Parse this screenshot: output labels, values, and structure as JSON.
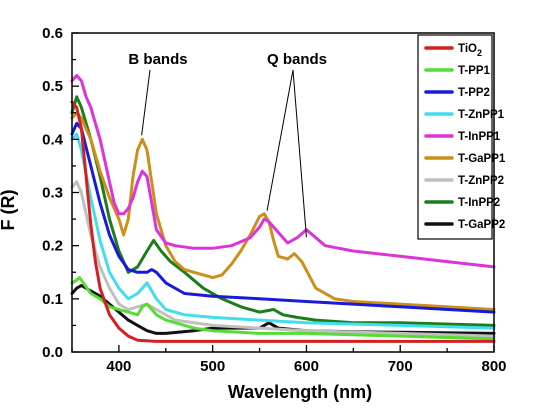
{
  "chart_data": {
    "type": "line",
    "title": "",
    "xlabel": "Wavelength (nm)",
    "ylabel": "F (R)",
    "xlim": [
      350,
      800
    ],
    "ylim": [
      0,
      0.6
    ],
    "xticks": [
      400,
      500,
      600,
      700,
      800
    ],
    "yticks": [
      0.0,
      0.1,
      0.2,
      0.3,
      0.4,
      0.5,
      0.6
    ],
    "grid": false,
    "legend_position": "top-right",
    "annotations": [
      {
        "text": "B bands",
        "target": [
          420,
          0.4
        ]
      },
      {
        "text": "Q bands",
        "targets": [
          [
            558,
            0.26
          ],
          [
            600,
            0.21
          ]
        ]
      }
    ],
    "series": [
      {
        "name": "TiO2",
        "color": "#d42020",
        "points": [
          [
            350,
            0.47
          ],
          [
            355,
            0.46
          ],
          [
            360,
            0.42
          ],
          [
            365,
            0.33
          ],
          [
            370,
            0.24
          ],
          [
            375,
            0.17
          ],
          [
            380,
            0.12
          ],
          [
            390,
            0.07
          ],
          [
            400,
            0.045
          ],
          [
            410,
            0.03
          ],
          [
            420,
            0.022
          ],
          [
            440,
            0.02
          ],
          [
            500,
            0.02
          ],
          [
            600,
            0.02
          ],
          [
            700,
            0.02
          ],
          [
            800,
            0.02
          ]
        ]
      },
      {
        "name": "T-PP1",
        "color": "#55dd33",
        "points": [
          [
            350,
            0.13
          ],
          [
            355,
            0.135
          ],
          [
            358,
            0.14
          ],
          [
            362,
            0.13
          ],
          [
            370,
            0.11
          ],
          [
            380,
            0.1
          ],
          [
            390,
            0.085
          ],
          [
            400,
            0.08
          ],
          [
            410,
            0.075
          ],
          [
            420,
            0.07
          ],
          [
            425,
            0.085
          ],
          [
            430,
            0.09
          ],
          [
            440,
            0.07
          ],
          [
            450,
            0.06
          ],
          [
            480,
            0.045
          ],
          [
            500,
            0.04
          ],
          [
            550,
            0.035
          ],
          [
            600,
            0.035
          ],
          [
            700,
            0.03
          ],
          [
            800,
            0.025
          ]
        ]
      },
      {
        "name": "T-PP2",
        "color": "#1a1adb",
        "points": [
          [
            350,
            0.41
          ],
          [
            355,
            0.43
          ],
          [
            360,
            0.42
          ],
          [
            370,
            0.35
          ],
          [
            380,
            0.28
          ],
          [
            390,
            0.22
          ],
          [
            400,
            0.18
          ],
          [
            410,
            0.155
          ],
          [
            420,
            0.15
          ],
          [
            430,
            0.15
          ],
          [
            435,
            0.155
          ],
          [
            440,
            0.15
          ],
          [
            450,
            0.13
          ],
          [
            470,
            0.11
          ],
          [
            500,
            0.105
          ],
          [
            550,
            0.1
          ],
          [
            600,
            0.095
          ],
          [
            700,
            0.085
          ],
          [
            800,
            0.075
          ]
        ]
      },
      {
        "name": "T-ZnPP1",
        "color": "#44ddee",
        "points": [
          [
            350,
            0.4
          ],
          [
            355,
            0.41
          ],
          [
            360,
            0.38
          ],
          [
            370,
            0.29
          ],
          [
            380,
            0.21
          ],
          [
            390,
            0.15
          ],
          [
            400,
            0.12
          ],
          [
            410,
            0.1
          ],
          [
            420,
            0.11
          ],
          [
            430,
            0.13
          ],
          [
            440,
            0.1
          ],
          [
            450,
            0.08
          ],
          [
            470,
            0.07
          ],
          [
            500,
            0.065
          ],
          [
            550,
            0.06
          ],
          [
            600,
            0.055
          ],
          [
            700,
            0.05
          ],
          [
            800,
            0.045
          ]
        ]
      },
      {
        "name": "T-InPP1",
        "color": "#dd33dd",
        "points": [
          [
            350,
            0.51
          ],
          [
            355,
            0.52
          ],
          [
            360,
            0.51
          ],
          [
            365,
            0.48
          ],
          [
            370,
            0.46
          ],
          [
            375,
            0.43
          ],
          [
            380,
            0.4
          ],
          [
            385,
            0.36
          ],
          [
            390,
            0.32
          ],
          [
            395,
            0.28
          ],
          [
            400,
            0.26
          ],
          [
            405,
            0.26
          ],
          [
            410,
            0.27
          ],
          [
            415,
            0.29
          ],
          [
            420,
            0.32
          ],
          [
            425,
            0.34
          ],
          [
            430,
            0.33
          ],
          [
            435,
            0.28
          ],
          [
            440,
            0.23
          ],
          [
            450,
            0.205
          ],
          [
            460,
            0.2
          ],
          [
            480,
            0.195
          ],
          [
            500,
            0.195
          ],
          [
            520,
            0.2
          ],
          [
            540,
            0.215
          ],
          [
            550,
            0.235
          ],
          [
            555,
            0.25
          ],
          [
            560,
            0.245
          ],
          [
            570,
            0.225
          ],
          [
            580,
            0.205
          ],
          [
            590,
            0.215
          ],
          [
            600,
            0.23
          ],
          [
            610,
            0.215
          ],
          [
            620,
            0.2
          ],
          [
            650,
            0.19
          ],
          [
            700,
            0.18
          ],
          [
            750,
            0.17
          ],
          [
            800,
            0.16
          ]
        ]
      },
      {
        "name": "T-GaPP1",
        "color": "#cc8f1a",
        "points": [
          [
            350,
            0.44
          ],
          [
            355,
            0.45
          ],
          [
            360,
            0.44
          ],
          [
            370,
            0.4
          ],
          [
            380,
            0.34
          ],
          [
            390,
            0.29
          ],
          [
            400,
            0.25
          ],
          [
            405,
            0.22
          ],
          [
            410,
            0.25
          ],
          [
            415,
            0.33
          ],
          [
            420,
            0.38
          ],
          [
            425,
            0.4
          ],
          [
            430,
            0.38
          ],
          [
            435,
            0.32
          ],
          [
            440,
            0.26
          ],
          [
            450,
            0.2
          ],
          [
            460,
            0.17
          ],
          [
            470,
            0.155
          ],
          [
            480,
            0.15
          ],
          [
            490,
            0.145
          ],
          [
            500,
            0.14
          ],
          [
            510,
            0.145
          ],
          [
            520,
            0.165
          ],
          [
            530,
            0.19
          ],
          [
            540,
            0.22
          ],
          [
            550,
            0.255
          ],
          [
            555,
            0.26
          ],
          [
            560,
            0.245
          ],
          [
            565,
            0.21
          ],
          [
            570,
            0.18
          ],
          [
            580,
            0.175
          ],
          [
            587,
            0.185
          ],
          [
            595,
            0.17
          ],
          [
            610,
            0.12
          ],
          [
            630,
            0.1
          ],
          [
            650,
            0.095
          ],
          [
            700,
            0.09
          ],
          [
            800,
            0.08
          ]
        ]
      },
      {
        "name": "T-ZnPP2",
        "color": "#c0c0c0",
        "points": [
          [
            350,
            0.31
          ],
          [
            355,
            0.32
          ],
          [
            360,
            0.3
          ],
          [
            370,
            0.22
          ],
          [
            380,
            0.16
          ],
          [
            390,
            0.12
          ],
          [
            400,
            0.09
          ],
          [
            410,
            0.08
          ],
          [
            420,
            0.085
          ],
          [
            430,
            0.09
          ],
          [
            440,
            0.08
          ],
          [
            460,
            0.06
          ],
          [
            500,
            0.05
          ],
          [
            550,
            0.045
          ],
          [
            600,
            0.04
          ],
          [
            700,
            0.035
          ],
          [
            800,
            0.03
          ]
        ]
      },
      {
        "name": "T-InPP2",
        "color": "#1d7d1d",
        "points": [
          [
            350,
            0.45
          ],
          [
            355,
            0.48
          ],
          [
            360,
            0.46
          ],
          [
            370,
            0.4
          ],
          [
            380,
            0.33
          ],
          [
            390,
            0.25
          ],
          [
            400,
            0.19
          ],
          [
            410,
            0.15
          ],
          [
            420,
            0.16
          ],
          [
            430,
            0.19
          ],
          [
            437,
            0.21
          ],
          [
            445,
            0.19
          ],
          [
            455,
            0.17
          ],
          [
            470,
            0.15
          ],
          [
            490,
            0.12
          ],
          [
            510,
            0.1
          ],
          [
            530,
            0.085
          ],
          [
            550,
            0.075
          ],
          [
            565,
            0.08
          ],
          [
            575,
            0.07
          ],
          [
            590,
            0.065
          ],
          [
            610,
            0.06
          ],
          [
            650,
            0.055
          ],
          [
            700,
            0.055
          ],
          [
            800,
            0.05
          ]
        ]
      },
      {
        "name": "T-GaPP2",
        "color": "#111111",
        "points": [
          [
            350,
            0.11
          ],
          [
            355,
            0.12
          ],
          [
            360,
            0.125
          ],
          [
            370,
            0.115
          ],
          [
            380,
            0.105
          ],
          [
            390,
            0.09
          ],
          [
            400,
            0.075
          ],
          [
            410,
            0.06
          ],
          [
            420,
            0.05
          ],
          [
            430,
            0.04
          ],
          [
            440,
            0.035
          ],
          [
            450,
            0.035
          ],
          [
            480,
            0.04
          ],
          [
            500,
            0.045
          ],
          [
            530,
            0.045
          ],
          [
            550,
            0.045
          ],
          [
            560,
            0.055
          ],
          [
            570,
            0.045
          ],
          [
            600,
            0.04
          ],
          [
            650,
            0.038
          ],
          [
            700,
            0.037
          ],
          [
            800,
            0.035
          ]
        ]
      }
    ]
  }
}
